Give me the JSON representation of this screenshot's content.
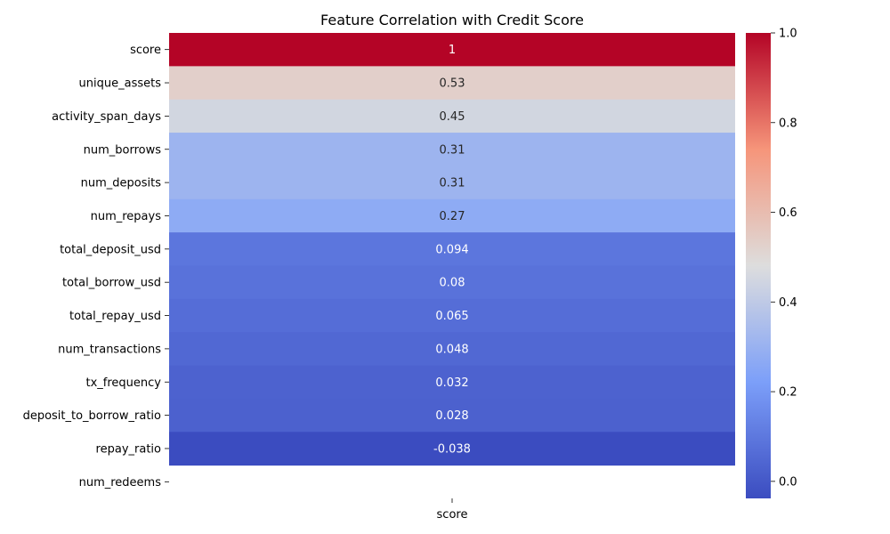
{
  "chart_data": {
    "type": "heatmap",
    "title": "Feature Correlation with Credit Score",
    "columns": [
      "score"
    ],
    "rows": [
      {
        "label": "score",
        "value": 1,
        "display": "1"
      },
      {
        "label": "unique_assets",
        "value": 0.53,
        "display": "0.53"
      },
      {
        "label": "activity_span_days",
        "value": 0.45,
        "display": "0.45"
      },
      {
        "label": "num_borrows",
        "value": 0.31,
        "display": "0.31"
      },
      {
        "label": "num_deposits",
        "value": 0.31,
        "display": "0.31"
      },
      {
        "label": "num_repays",
        "value": 0.27,
        "display": "0.27"
      },
      {
        "label": "total_deposit_usd",
        "value": 0.094,
        "display": "0.094"
      },
      {
        "label": "total_borrow_usd",
        "value": 0.08,
        "display": "0.08"
      },
      {
        "label": "total_repay_usd",
        "value": 0.065,
        "display": "0.065"
      },
      {
        "label": "num_transactions",
        "value": 0.048,
        "display": "0.048"
      },
      {
        "label": "tx_frequency",
        "value": 0.032,
        "display": "0.032"
      },
      {
        "label": "deposit_to_borrow_ratio",
        "value": 0.028,
        "display": "0.028"
      },
      {
        "label": "repay_ratio",
        "value": -0.038,
        "display": "-0.038"
      },
      {
        "label": "num_redeems",
        "value": null,
        "display": ""
      }
    ],
    "colorscale": "coolwarm",
    "vmin": -0.038,
    "vmax": 1.0,
    "colorbar_ticks": [
      {
        "value": 0.0,
        "label": "0.0"
      },
      {
        "value": 0.2,
        "label": "0.2"
      },
      {
        "value": 0.4,
        "label": "0.4"
      },
      {
        "value": 0.6,
        "label": "0.6"
      },
      {
        "value": 0.8,
        "label": "0.8"
      },
      {
        "value": 1.0,
        "label": "1.0"
      }
    ]
  }
}
